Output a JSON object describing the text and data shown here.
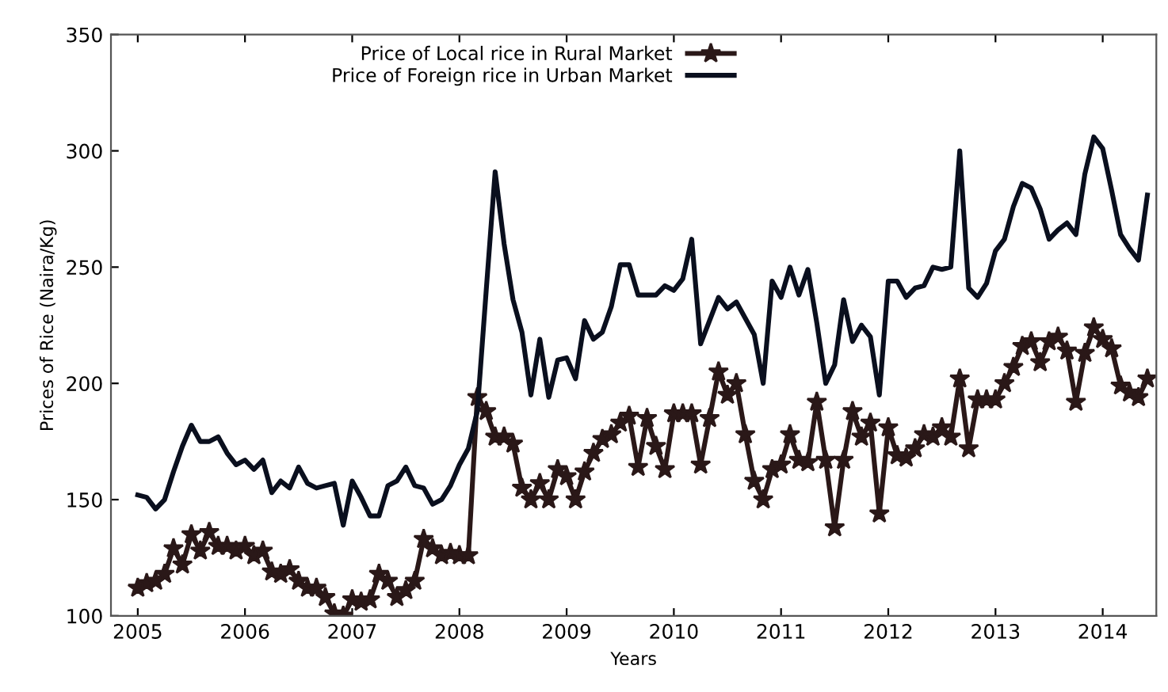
{
  "chart_data": {
    "type": "line",
    "xlabel": "Years",
    "ylabel": "Prices of Rice (Naira/Kg)",
    "xlim": [
      "2004-10",
      "2014-07"
    ],
    "xticks": [
      "2005",
      "2006",
      "2007",
      "2008",
      "2009",
      "2010",
      "2011",
      "2012",
      "2013",
      "2014"
    ],
    "ylim": [
      100,
      350
    ],
    "yticks": [
      100,
      150,
      200,
      250,
      300,
      350
    ],
    "grid": false,
    "legend": "top left",
    "x": [
      "2005-01",
      "2005-02",
      "2005-03",
      "2005-04",
      "2005-05",
      "2005-06",
      "2005-07",
      "2005-08",
      "2005-09",
      "2005-10",
      "2005-11",
      "2005-12",
      "2006-01",
      "2006-02",
      "2006-03",
      "2006-04",
      "2006-05",
      "2006-06",
      "2006-07",
      "2006-08",
      "2006-09",
      "2006-10",
      "2006-11",
      "2006-12",
      "2007-01",
      "2007-02",
      "2007-03",
      "2007-04",
      "2007-05",
      "2007-06",
      "2007-07",
      "2007-08",
      "2007-09",
      "2007-10",
      "2007-11",
      "2007-12",
      "2008-01",
      "2008-02",
      "2008-03",
      "2008-04",
      "2008-05",
      "2008-06",
      "2008-07",
      "2008-08",
      "2008-09",
      "2008-10",
      "2008-11",
      "2008-12",
      "2009-01",
      "2009-02",
      "2009-03",
      "2009-04",
      "2009-05",
      "2009-06",
      "2009-07",
      "2009-08",
      "2009-09",
      "2009-10",
      "2009-11",
      "2009-12",
      "2010-01",
      "2010-02",
      "2010-03",
      "2010-04",
      "2010-05",
      "2010-06",
      "2010-07",
      "2010-08",
      "2010-09",
      "2010-10",
      "2010-11",
      "2010-12",
      "2011-01",
      "2011-02",
      "2011-03",
      "2011-04",
      "2011-05",
      "2011-06",
      "2011-07",
      "2011-08",
      "2011-09",
      "2011-10",
      "2011-11",
      "2011-12",
      "2012-01",
      "2012-02",
      "2012-03",
      "2012-04",
      "2012-05",
      "2012-06",
      "2012-07",
      "2012-08",
      "2012-09",
      "2012-10",
      "2012-11",
      "2012-12",
      "2013-01",
      "2013-02",
      "2013-03",
      "2013-04",
      "2013-05",
      "2013-06",
      "2013-07",
      "2013-08",
      "2013-09",
      "2013-10",
      "2013-11",
      "2013-12",
      "2014-01",
      "2014-02",
      "2014-03",
      "2014-04",
      "2014-05",
      "2014-06"
    ],
    "series": [
      {
        "name": "Price of Local rice in Rural Market",
        "color": "#2a1818",
        "marker": "star",
        "values": [
          112,
          114,
          115,
          118,
          129,
          122,
          135,
          128,
          136,
          130,
          130,
          128,
          130,
          126,
          128,
          119,
          118,
          120,
          115,
          112,
          112,
          108,
          101,
          100,
          107,
          106,
          107,
          118,
          115,
          108,
          111,
          115,
          133,
          129,
          126,
          127,
          126,
          126,
          194,
          188,
          177,
          177,
          174,
          155,
          150,
          157,
          150,
          163,
          160,
          150,
          162,
          170,
          176,
          178,
          183,
          186,
          164,
          185,
          173,
          163,
          187,
          187,
          187,
          165,
          185,
          205,
          195,
          200,
          178,
          158,
          150,
          163,
          165,
          178,
          167,
          166,
          192,
          167,
          138,
          167,
          188,
          177,
          183,
          144,
          181,
          169,
          168,
          172,
          178,
          177,
          181,
          177,
          202,
          172,
          193,
          193,
          193,
          200,
          207,
          216,
          218,
          209,
          218,
          220,
          214,
          192,
          213,
          224,
          219,
          215,
          199,
          196,
          194,
          202
        ]
      },
      {
        "name": "Price of Foreign rice in Urban Market",
        "color": "#0a0f1e",
        "marker": "none",
        "values": [
          152,
          151,
          146,
          150,
          162,
          173,
          182,
          175,
          175,
          177,
          170,
          165,
          167,
          163,
          167,
          153,
          158,
          155,
          164,
          157,
          155,
          156,
          157,
          139,
          158,
          151,
          143,
          143,
          156,
          158,
          164,
          156,
          155,
          148,
          150,
          156,
          165,
          172,
          188,
          240,
          291,
          260,
          236,
          222,
          195,
          219,
          194,
          210,
          211,
          202,
          227,
          219,
          222,
          233,
          251,
          251,
          238,
          238,
          238,
          242,
          240,
          245,
          262,
          217,
          227,
          237,
          232,
          235,
          228,
          221,
          200,
          244,
          237,
          250,
          238,
          249,
          226,
          200,
          208,
          236,
          218,
          225,
          220,
          195,
          244,
          244,
          237,
          241,
          242,
          250,
          249,
          250,
          300,
          241,
          237,
          243,
          257,
          262,
          276,
          286,
          284,
          275,
          262,
          266,
          269,
          264,
          290,
          306,
          301,
          283,
          264,
          258,
          253,
          281
        ]
      }
    ]
  }
}
